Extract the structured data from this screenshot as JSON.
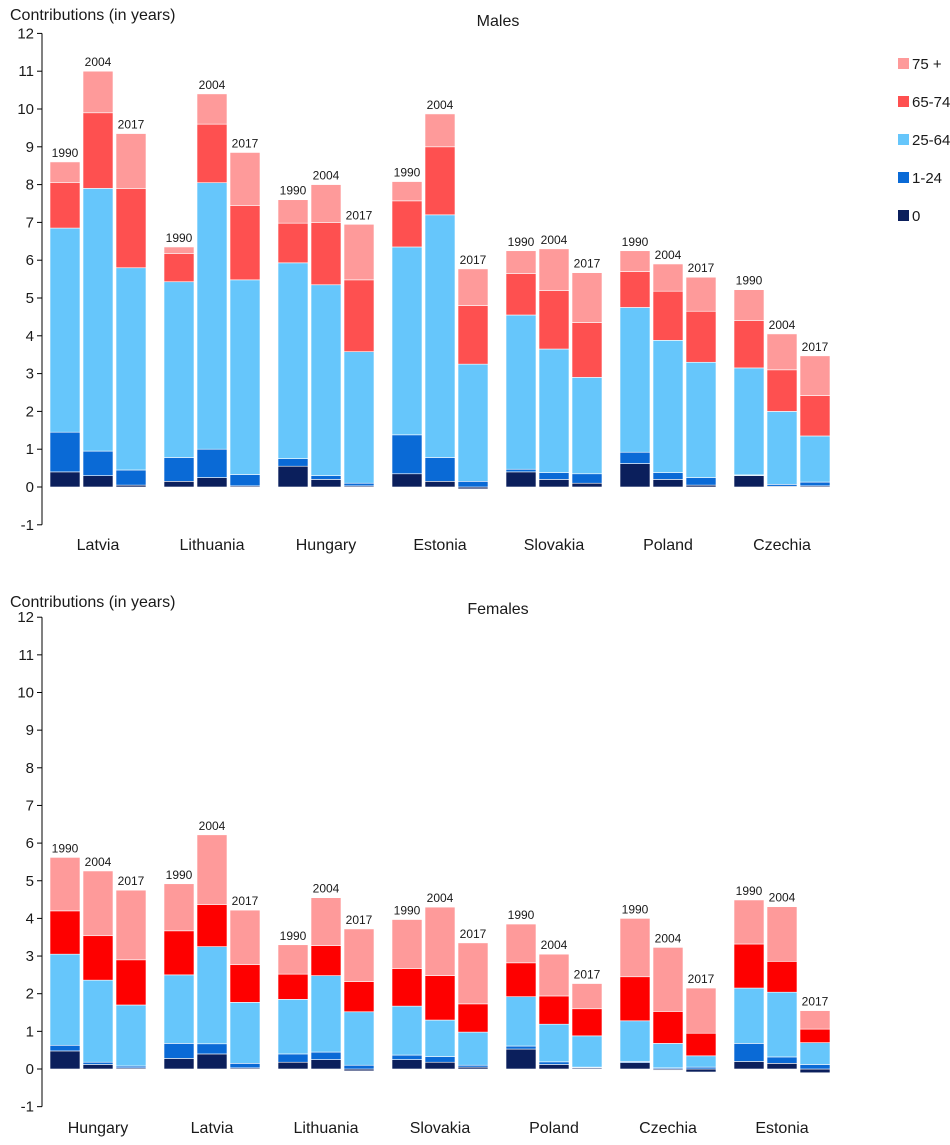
{
  "colors": {
    "age_0": "#0b1f5c",
    "age_1_24": "#0a6ad6",
    "age_25_64": "#66c6fb",
    "age_65_74_males": "#fe5050",
    "age_65_74_females": "#fe0000",
    "age_75_plus": "#fe9a9a",
    "axis": "#000000"
  },
  "chart_data": [
    {
      "type": "bar",
      "stacked": true,
      "title": "Males",
      "ylabel": "Contributions (in years)",
      "ylim": [
        -1,
        12
      ],
      "yticks": [
        -1,
        0,
        1,
        2,
        3,
        4,
        5,
        6,
        7,
        8,
        9,
        10,
        11,
        12
      ],
      "legend": {
        "placement": "right",
        "items": [
          {
            "label": "75 +",
            "key": "age_75_plus"
          },
          {
            "label": "65-74",
            "key": "age_65_74_males"
          },
          {
            "label": "25-64",
            "key": "age_25_64"
          },
          {
            "label": "1-24",
            "key": "age_1_24"
          },
          {
            "label": "0",
            "key": "age_0"
          }
        ]
      },
      "stack_order": [
        "age_0",
        "age_1_24",
        "age_25_64",
        "age_65_74_males",
        "age_75_plus"
      ],
      "groups": [
        {
          "country": "Latvia",
          "bars": [
            {
              "year": "1990",
              "values": [
                0.4,
                1.05,
                5.4,
                1.2,
                0.55
              ]
            },
            {
              "year": "2004",
              "values": [
                0.3,
                0.65,
                6.95,
                2.0,
                1.1
              ]
            },
            {
              "year": "2017",
              "values": [
                0.05,
                0.4,
                5.35,
                2.1,
                1.45
              ]
            }
          ]
        },
        {
          "country": "Lithuania",
          "bars": [
            {
              "year": "1990",
              "values": [
                0.15,
                0.63,
                4.65,
                0.75,
                0.17
              ]
            },
            {
              "year": "2004",
              "values": [
                0.25,
                0.75,
                7.05,
                1.55,
                0.8
              ]
            },
            {
              "year": "2017",
              "values": [
                0.03,
                0.3,
                5.15,
                1.97,
                1.4
              ]
            }
          ]
        },
        {
          "country": "Hungary",
          "bars": [
            {
              "year": "1990",
              "values": [
                0.55,
                0.2,
                5.18,
                1.05,
                0.62
              ]
            },
            {
              "year": "2004",
              "values": [
                0.2,
                0.1,
                5.05,
                1.65,
                1.0
              ]
            },
            {
              "year": "2017",
              "values": [
                0.03,
                0.07,
                3.48,
                1.9,
                1.47
              ]
            }
          ]
        },
        {
          "country": "Estonia",
          "bars": [
            {
              "year": "1990",
              "values": [
                0.35,
                1.03,
                4.97,
                1.22,
                0.51
              ]
            },
            {
              "year": "2004",
              "values": [
                0.15,
                0.63,
                6.42,
                1.8,
                0.87
              ]
            },
            {
              "year": "2017",
              "values": [
                -0.05,
                0.15,
                3.1,
                1.55,
                0.97
              ]
            }
          ]
        },
        {
          "country": "Slovakia",
          "bars": [
            {
              "year": "1990",
              "values": [
                0.4,
                0.07,
                4.08,
                1.1,
                0.6
              ]
            },
            {
              "year": "2004",
              "values": [
                0.2,
                0.18,
                3.27,
                1.55,
                1.1
              ]
            },
            {
              "year": "2017",
              "values": [
                0.1,
                0.25,
                2.55,
                1.45,
                1.32
              ]
            }
          ]
        },
        {
          "country": "Poland",
          "bars": [
            {
              "year": "1990",
              "values": [
                0.62,
                0.3,
                3.83,
                0.95,
                0.55
              ]
            },
            {
              "year": "2004",
              "values": [
                0.2,
                0.18,
                3.5,
                1.3,
                0.72
              ]
            },
            {
              "year": "2017",
              "values": [
                0.05,
                0.2,
                3.05,
                1.35,
                0.9
              ]
            }
          ]
        },
        {
          "country": "Czechia",
          "bars": [
            {
              "year": "1990",
              "values": [
                0.3,
                0.02,
                2.83,
                1.25,
                0.82
              ]
            },
            {
              "year": "2004",
              "values": [
                0.02,
                0.05,
                1.93,
                1.1,
                0.95
              ]
            },
            {
              "year": "2017",
              "values": [
                0.03,
                0.1,
                1.22,
                1.07,
                1.05
              ]
            }
          ]
        }
      ]
    },
    {
      "type": "bar",
      "stacked": true,
      "title": "Females",
      "ylabel": "Contributions (in years)",
      "ylim": [
        -1,
        12
      ],
      "yticks": [
        -1,
        0,
        1,
        2,
        3,
        4,
        5,
        6,
        7,
        8,
        9,
        10,
        11,
        12
      ],
      "stack_order": [
        "age_0",
        "age_1_24",
        "age_25_64",
        "age_65_74_females",
        "age_75_plus"
      ],
      "groups": [
        {
          "country": "Hungary",
          "bars": [
            {
              "year": "1990",
              "values": [
                0.48,
                0.15,
                2.42,
                1.15,
                1.42
              ]
            },
            {
              "year": "2004",
              "values": [
                0.12,
                0.06,
                2.18,
                1.18,
                1.72
              ]
            },
            {
              "year": "2017",
              "values": [
                0.03,
                0.05,
                1.62,
                1.2,
                1.85
              ]
            }
          ]
        },
        {
          "country": "Latvia",
          "bars": [
            {
              "year": "1990",
              "values": [
                0.28,
                0.4,
                1.82,
                1.17,
                1.25
              ]
            },
            {
              "year": "2004",
              "values": [
                0.4,
                0.27,
                2.58,
                1.12,
                1.85
              ]
            },
            {
              "year": "2017",
              "values": [
                0.03,
                0.12,
                1.62,
                1.0,
                1.45
              ]
            }
          ]
        },
        {
          "country": "Lithuania",
          "bars": [
            {
              "year": "1990",
              "values": [
                0.18,
                0.22,
                1.45,
                0.67,
                0.78
              ]
            },
            {
              "year": "2004",
              "values": [
                0.25,
                0.2,
                2.03,
                0.8,
                1.27
              ]
            },
            {
              "year": "2017",
              "values": [
                -0.05,
                0.1,
                1.42,
                0.8,
                1.4
              ]
            }
          ]
        },
        {
          "country": "Slovakia",
          "bars": [
            {
              "year": "1990",
              "values": [
                0.25,
                0.12,
                1.3,
                1.0,
                1.3
              ]
            },
            {
              "year": "2004",
              "values": [
                0.18,
                0.15,
                0.97,
                1.18,
                1.82
              ]
            },
            {
              "year": "2017",
              "values": [
                0.05,
                0.05,
                0.88,
                0.75,
                1.62
              ]
            }
          ]
        },
        {
          "country": "Poland",
          "bars": [
            {
              "year": "1990",
              "values": [
                0.53,
                0.08,
                1.31,
                0.9,
                1.03
              ]
            },
            {
              "year": "2004",
              "values": [
                0.12,
                0.07,
                1.0,
                0.75,
                1.11
              ]
            },
            {
              "year": "2017",
              "values": [
                0.03,
                0.02,
                0.83,
                0.72,
                0.67
              ]
            }
          ]
        },
        {
          "country": "Czechia",
          "bars": [
            {
              "year": "1990",
              "values": [
                0.17,
                0.03,
                1.08,
                1.17,
                1.55
              ]
            },
            {
              "year": "2004",
              "values": [
                -0.03,
                0.03,
                0.65,
                0.85,
                1.7
              ]
            },
            {
              "year": "2017",
              "values": [
                -0.08,
                0.05,
                0.3,
                0.6,
                1.2
              ]
            }
          ]
        },
        {
          "country": "Estonia",
          "bars": [
            {
              "year": "1990",
              "values": [
                0.2,
                0.48,
                1.47,
                1.17,
                1.17
              ]
            },
            {
              "year": "2004",
              "values": [
                0.15,
                0.17,
                1.72,
                0.82,
                1.45
              ]
            },
            {
              "year": "2017",
              "values": [
                -0.1,
                0.12,
                0.58,
                0.36,
                0.49
              ]
            }
          ]
        }
      ]
    }
  ]
}
